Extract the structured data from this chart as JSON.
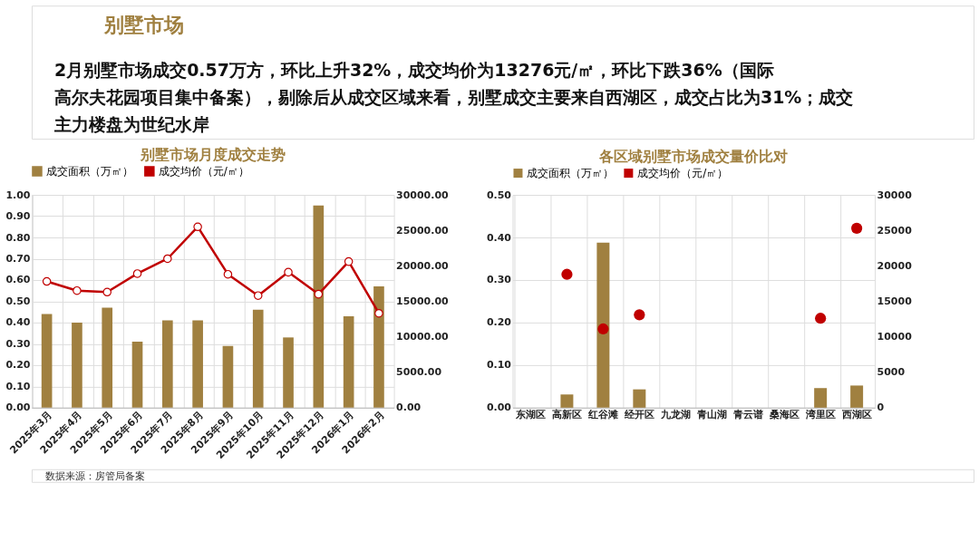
{
  "chart_data": [
    {
      "type": "bar",
      "title": "别墅市场月度成交走势",
      "annotations": [
        "别墅市场",
        "2月别墅市场成交0.57万方，环比上升32%，成交均价为13276元/㎡，环比下跌36%（国际高尔夫花园项目集中备案），剔除后从成交区域来看，别墅成交主要来自西湖区，成交占比为31%；成交主力楼盘为世纪水岸",
        "数据来源：房管局备案"
      ],
      "categories": [
        "2025年3月",
        "2025年4月",
        "2025年5月",
        "2025年6月",
        "2025年7月",
        "2025年8月",
        "2025年9月",
        "2025年10月",
        "2025年11月",
        "2025年12月",
        "2026年1月",
        "2026年2月"
      ],
      "series": [
        {
          "name": "成交面积（万㎡）",
          "color": "#a08040",
          "values": [
            0.44,
            0.4,
            0.47,
            0.31,
            0.41,
            0.41,
            0.29,
            0.46,
            0.33,
            0.95,
            0.43,
            0.57
          ]
        },
        {
          "name": "成交均价（元/㎡）",
          "type": "line",
          "axis": "y2",
          "color": "#c00000",
          "marker": "circle",
          "values": [
            17800,
            16500,
            16300,
            18900,
            21000,
            25500,
            18800,
            15800,
            19100,
            16000,
            20600,
            13300
          ]
        }
      ],
      "ylim": [
        0,
        1
      ],
      "yticks": [
        {
          "value": 0,
          "label": "0.00"
        },
        {
          "value": 0.1,
          "label": "0.10"
        },
        {
          "value": 0.2,
          "label": "0.20"
        },
        {
          "value": 0.3,
          "label": "0.30"
        },
        {
          "value": 0.4,
          "label": "0.40"
        },
        {
          "value": 0.5,
          "label": "0.50"
        },
        {
          "value": 0.6,
          "label": "0.60"
        },
        {
          "value": 0.7,
          "label": "0.70"
        },
        {
          "value": 0.8,
          "label": "0.80"
        },
        {
          "value": 0.9,
          "label": "0.90"
        },
        {
          "value": 1,
          "label": "1.00"
        }
      ],
      "y2lim": [
        0,
        30000
      ],
      "y2ticks": [
        {
          "value": 0,
          "label": "0.00"
        },
        {
          "value": 5000,
          "label": "5000.00"
        },
        {
          "value": 10000,
          "label": "10000.00"
        },
        {
          "value": 15000,
          "label": "15000.00"
        },
        {
          "value": 20000,
          "label": "20000.00"
        },
        {
          "value": 25000,
          "label": "25000.00"
        },
        {
          "value": 30000,
          "label": "30000.00"
        }
      ],
      "grid": true,
      "legend": "top"
    },
    {
      "type": "bar",
      "title": "各区域别墅市场成交量价比对",
      "categories": [
        "东湖区",
        "高新区",
        "红谷滩",
        "经开区",
        "九龙湖",
        "青山湖",
        "青云谱",
        "桑海区",
        "湾里区",
        "西湖区"
      ],
      "series": [
        {
          "name": "成交面积（万㎡）",
          "color": "#a08040",
          "values": [
            null,
            0.031,
            0.388,
            0.043,
            null,
            null,
            null,
            null,
            0.046,
            0.052
          ]
        },
        {
          "name": "成交均价（元/㎡）",
          "type": "scatter",
          "axis": "y2",
          "color": "#c00000",
          "marker": "circle",
          "values": [
            null,
            18800,
            11100,
            13100,
            null,
            null,
            null,
            null,
            12600,
            25300
          ]
        }
      ],
      "ylim": [
        0,
        0.5
      ],
      "yticks": [
        {
          "value": 0,
          "label": "0.00"
        },
        {
          "value": 0.1,
          "label": "0.10"
        },
        {
          "value": 0.2,
          "label": "0.20"
        },
        {
          "value": 0.3,
          "label": "0.30"
        },
        {
          "value": 0.4,
          "label": "0.40"
        },
        {
          "value": 0.5,
          "label": "0.50"
        }
      ],
      "y2lim": [
        0,
        30000
      ],
      "y2ticks": [
        0,
        5000,
        10000,
        15000,
        20000,
        25000,
        30000
      ],
      "grid": true,
      "legend": "top"
    }
  ]
}
